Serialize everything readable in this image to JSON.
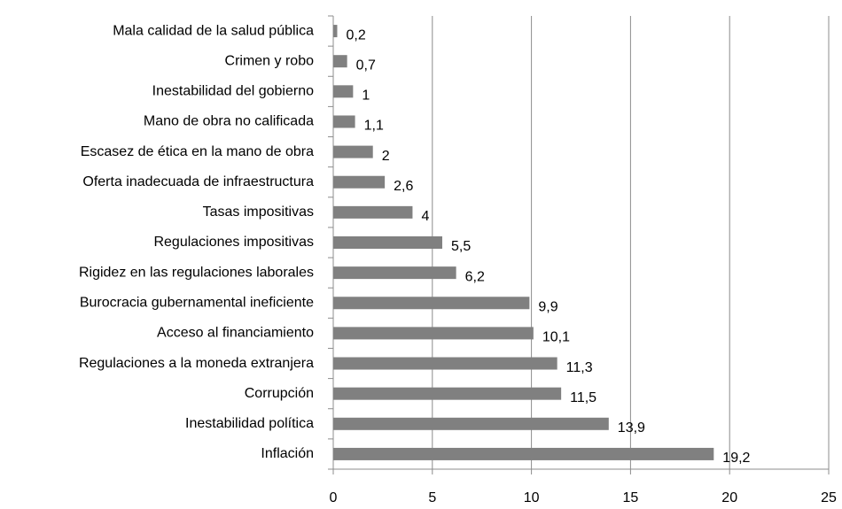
{
  "chart_data": {
    "type": "bar",
    "orientation": "horizontal",
    "categories": [
      "Mala calidad de la salud pública",
      "Crimen y robo",
      "Inestabilidad del gobierno",
      "Mano de obra no calificada",
      "Escasez de ética en la mano de obra",
      "Oferta inadecuada de infraestructura",
      "Tasas impositivas",
      "Regulaciones impositivas",
      "Rigidez en las regulaciones laborales",
      "Burocracia gubernamental ineficiente",
      "Acceso al financiamiento",
      "Regulaciones a la moneda extranjera",
      "Corrupción",
      "Inestabilidad política",
      "Inflación"
    ],
    "values": [
      0.2,
      0.7,
      1,
      1.1,
      2,
      2.6,
      4,
      5.5,
      6.2,
      9.9,
      10.1,
      11.3,
      11.5,
      13.9,
      19.2
    ],
    "value_labels": [
      "0,2",
      "0,7",
      "1",
      "1,1",
      "2",
      "2,6",
      "4",
      "5,5",
      "6,2",
      "9,9",
      "10,1",
      "11,3",
      "11,5",
      "13,9",
      "19,2"
    ],
    "color": "#808080",
    "xlim": [
      0,
      25
    ],
    "xticks": [
      0,
      5,
      10,
      15,
      20,
      25
    ],
    "grid": true
  }
}
